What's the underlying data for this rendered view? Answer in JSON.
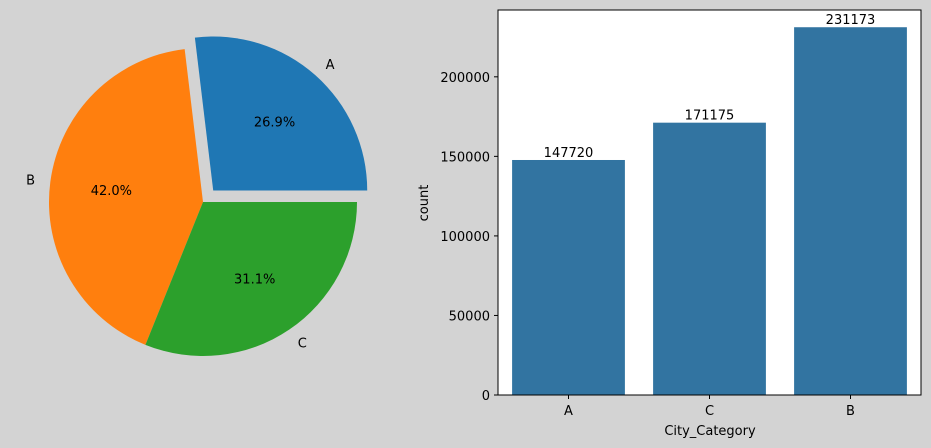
{
  "chart_data": [
    {
      "type": "pie",
      "slices": [
        {
          "label": "A",
          "value": 26.9,
          "pct_label": "26.9%",
          "color": "#1f77b4",
          "exploded": true
        },
        {
          "label": "B",
          "value": 42.0,
          "pct_label": "42.0%",
          "color": "#ff7f0e",
          "exploded": false
        },
        {
          "label": "C",
          "value": 31.1,
          "pct_label": "31.1%",
          "color": "#2ca02c",
          "exploded": false
        }
      ]
    },
    {
      "type": "bar",
      "categories": [
        "A",
        "C",
        "B"
      ],
      "values": [
        147720,
        171175,
        231173
      ],
      "data_labels": [
        "147720",
        "171175",
        "231173"
      ],
      "xlabel": "City_Category",
      "ylabel": "count",
      "ylim": [
        0,
        242000
      ],
      "yticks": [
        0,
        50000,
        100000,
        150000,
        200000
      ],
      "ytick_labels": [
        "0",
        "50000",
        "100000",
        "150000",
        "200000"
      ],
      "bar_color": "#3274a1",
      "grid": false
    }
  ]
}
